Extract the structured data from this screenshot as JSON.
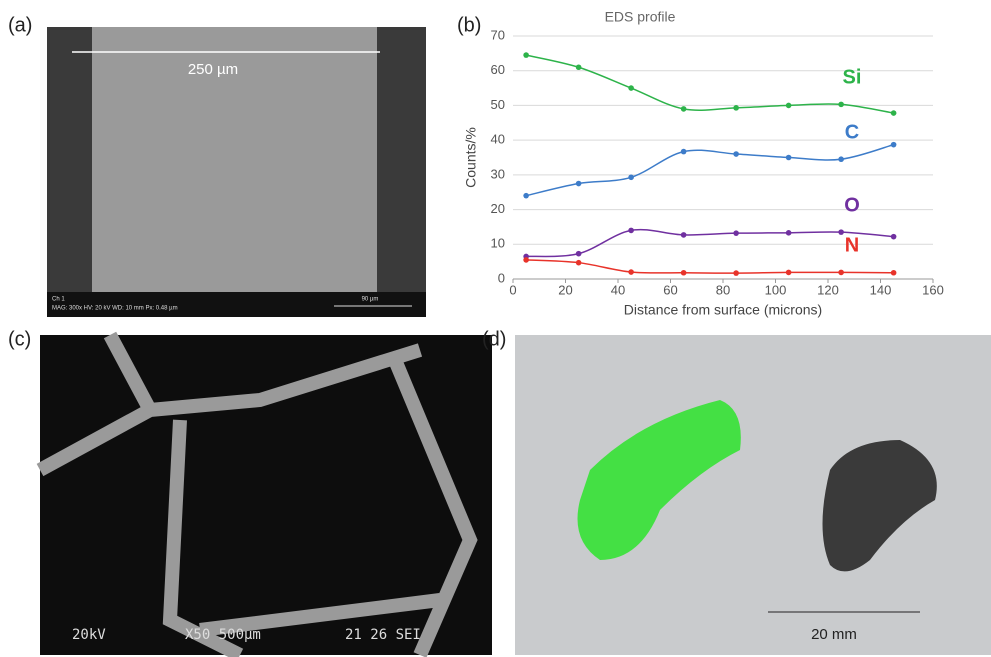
{
  "chart_data": {
    "type": "line",
    "title": "EDS profile",
    "x_label": "Distance from surface (microns)",
    "y_label": "Counts/%",
    "x": [
      5,
      25,
      45,
      65,
      85,
      105,
      125,
      145
    ],
    "series": [
      {
        "name": "Si",
        "color": "#2db34a",
        "values": [
          64.5,
          61,
          55,
          49,
          49.3,
          50,
          50.3,
          47.8
        ]
      },
      {
        "name": "C",
        "color": "#3d7cc9",
        "values": [
          24,
          27.5,
          29.3,
          36.7,
          36,
          35,
          34.5,
          38.7
        ]
      },
      {
        "name": "O",
        "color": "#7030a0",
        "values": [
          6.5,
          7.3,
          14,
          12.7,
          13.2,
          13.3,
          13.5,
          12.2
        ]
      },
      {
        "name": "N",
        "color": "#e8332a",
        "values": [
          5.5,
          4.7,
          2,
          1.8,
          1.7,
          1.9,
          1.9,
          1.8
        ]
      }
    ],
    "xlim": [
      0,
      160
    ],
    "xticks": [
      0,
      20,
      40,
      60,
      80,
      100,
      120,
      140,
      160
    ],
    "ylim": [
      0,
      70
    ],
    "yticks": [
      0,
      10,
      20,
      30,
      40,
      50,
      60,
      70
    ],
    "grid": true
  },
  "panels": {
    "a": {
      "label": "(a)",
      "scale": "250 µm",
      "channel": "Ch 1",
      "info": "MAG: 300x   HV: 20 kV   WD: 10 mm   Px: 0.48 µm",
      "scale_bar": "90 µm"
    },
    "b": {
      "label": "(b)"
    },
    "c": {
      "label": "(c)",
      "voltage": "20kV",
      "magnification": "X50 500µm",
      "code": "21 26 SEI"
    },
    "d": {
      "label": "(d)",
      "scale": "20 mm"
    }
  }
}
